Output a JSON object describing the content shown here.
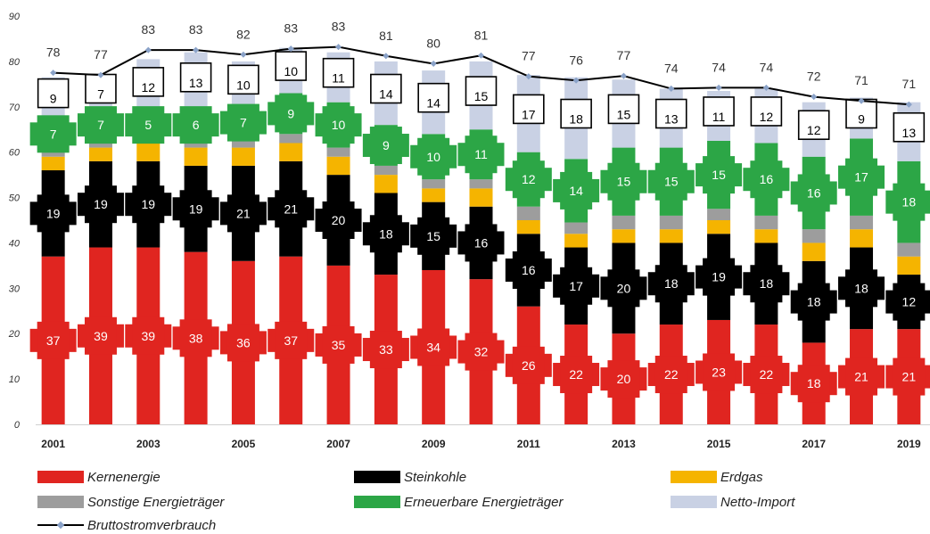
{
  "colors": {
    "kernenergie": "#e02520",
    "steinkohle": "#000000",
    "erdgas": "#f5b400",
    "sonstige": "#9d9d9d",
    "erneuerbare": "#2ca646",
    "import": "#c9d1e4",
    "line": "#000000",
    "marker": "#8aa2c8"
  },
  "chart_data": {
    "type": "bar",
    "stacked": true,
    "categories": [
      "2001",
      "2002",
      "2003",
      "2004",
      "2005",
      "2006",
      "2007",
      "2008",
      "2009",
      "2010",
      "2011",
      "2012",
      "2013",
      "2014",
      "2015",
      "2016",
      "2017",
      "2018",
      "2019"
    ],
    "x_tick_labels": [
      "2001",
      "",
      "2003",
      "",
      "2005",
      "",
      "2007",
      "",
      "2009",
      "",
      "2011",
      "",
      "2013",
      "",
      "2015",
      "",
      "2017",
      "",
      "2019"
    ],
    "ylim": [
      0,
      90
    ],
    "y_ticks": [
      0,
      10,
      20,
      30,
      40,
      50,
      60,
      70,
      80,
      90
    ],
    "series": [
      {
        "name": "Kernenergie",
        "key": "kernenergie",
        "values": [
          37,
          39,
          39,
          38,
          36,
          37,
          35,
          33,
          34,
          32,
          26,
          22,
          20,
          22,
          23,
          22,
          18,
          21,
          21
        ],
        "labels": [
          "37",
          "39",
          "39",
          "38",
          "36",
          "37",
          "35",
          "33",
          "34",
          "32",
          "26",
          "22",
          "20",
          "22",
          "23",
          "22",
          "18",
          "21",
          "21"
        ]
      },
      {
        "name": "Steinkohle",
        "key": "steinkohle",
        "values": [
          19,
          19,
          19,
          19,
          21,
          21,
          20,
          18,
          15,
          16,
          16,
          17,
          20,
          18,
          19,
          18,
          18,
          18,
          12
        ],
        "labels": [
          "19",
          "19",
          "19",
          "19",
          "21",
          "21",
          "20",
          "18",
          "15",
          "16",
          "16",
          "17",
          "20",
          "18",
          "19",
          "18",
          "18",
          "18",
          "12"
        ]
      },
      {
        "name": "Erdgas",
        "key": "erdgas",
        "values": [
          3,
          3,
          4,
          4,
          4,
          4,
          4,
          4,
          3,
          4,
          3,
          3,
          3,
          3,
          3,
          3,
          4,
          4,
          4
        ],
        "labels": []
      },
      {
        "name": "Sonstige Energieträger",
        "key": "sonstige",
        "values": [
          1.5,
          1.5,
          1.5,
          2,
          2,
          2,
          2,
          2,
          2,
          2,
          3,
          2.5,
          3,
          3,
          2.5,
          3,
          3,
          3,
          3
        ],
        "labels": []
      },
      {
        "name": "Erneuerbare Energieträger",
        "key": "erneuerbare",
        "values": [
          7,
          7,
          5,
          6,
          7,
          9,
          10,
          9,
          10,
          11,
          12,
          14,
          15,
          15,
          15,
          16,
          16,
          17,
          18
        ],
        "labels": [
          "7",
          "7",
          "5",
          "6",
          "7",
          "9",
          "10",
          "9",
          "10",
          "11",
          "12",
          "14",
          "15",
          "15",
          "15",
          "16",
          "16",
          "17",
          "18"
        ]
      },
      {
        "name": "Netto-Import",
        "key": "import",
        "values": [
          9,
          7,
          12,
          13,
          10,
          10,
          11,
          14,
          14,
          15,
          17,
          18,
          15,
          13,
          11,
          12,
          12,
          9,
          13
        ],
        "labels": [
          "9",
          "7",
          "12",
          "13",
          "10",
          "10",
          "11",
          "14",
          "14",
          "15",
          "17",
          "18",
          "15",
          "13",
          "11",
          "12",
          "12",
          "9",
          "13"
        ]
      }
    ],
    "line": {
      "name": "Bruttostromverbrauch",
      "values": [
        77.5,
        77,
        82.5,
        82.5,
        81.5,
        82.8,
        83.2,
        81.2,
        79.5,
        81.3,
        76.7,
        75.8,
        76.8,
        74,
        74.2,
        74.2,
        72.2,
        71.3,
        70.5
      ],
      "labels": [
        "78",
        "77",
        "83",
        "83",
        "82",
        "83",
        "83",
        "81",
        "80",
        "81",
        "77",
        "76",
        "77",
        "74",
        "74",
        "74",
        "72",
        "71",
        "71"
      ]
    },
    "legend_position": "bottom"
  },
  "legend": {
    "kernenergie": "Kernenergie",
    "steinkohle": "Steinkohle",
    "erdgas": "Erdgas",
    "sonstige": "Sonstige Energieträger",
    "erneuerbare": "Erneuerbare Energieträger",
    "import": "Netto-Import",
    "line": "Bruttostromverbrauch"
  }
}
